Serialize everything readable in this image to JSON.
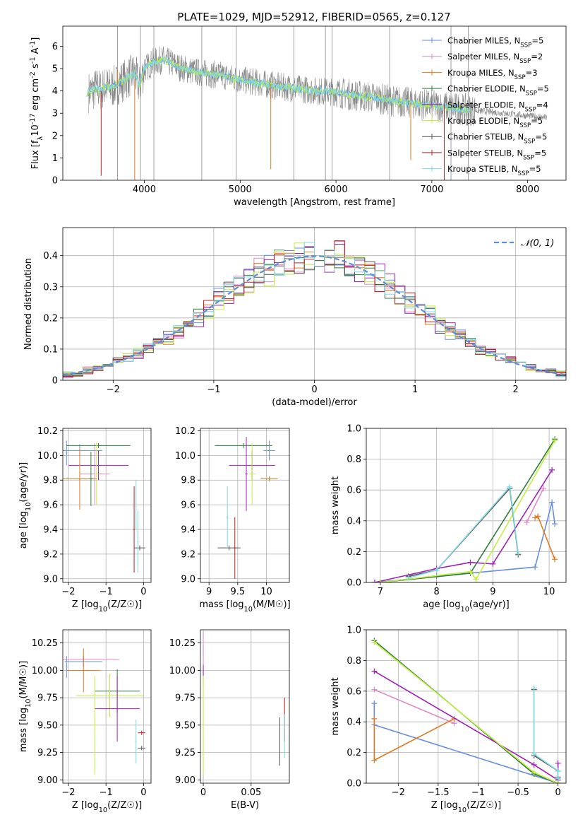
{
  "title": "PLATE=1029, MJD=52912, FIBERID=0565, z=0.127",
  "colors": {
    "chabrier_miles": "#6a8fdf",
    "salpeter_miles": "#e28cc6",
    "kroupa_miles": "#e5781f",
    "chabrier_elodie": "#2f7d3c",
    "salpeter_elodie": "#9f22b8",
    "kroupa_elodie": "#c2ef3f",
    "chabrier_stelib": "#555555",
    "salpeter_stelib": "#c11d1d",
    "kroupa_stelib": "#7ed8e2",
    "data_spectrum": "#888888",
    "gaussian": "#5e8dd8"
  },
  "chart_data": [
    {
      "id": "spectrum",
      "type": "line",
      "xlabel": "wavelength [Angstrom, rest frame]",
      "ylabel": "Flux [f_λ10^-17 erg cm^-2 s^-1 A^-1]",
      "xlim": [
        3150,
        8400
      ],
      "ylim": [
        0,
        6.9
      ],
      "xticks": [
        4000,
        5000,
        6000,
        7000,
        8000
      ],
      "yticks": [
        0,
        1,
        2,
        3,
        4,
        5,
        6
      ],
      "grid": false,
      "legend_position": "top-right",
      "legend": [
        {
          "label": "Chabrier MILES, N_SSP=5",
          "color_key": "chabrier_miles"
        },
        {
          "label": "Salpeter MILES, N_SSP=2",
          "color_key": "salpeter_miles"
        },
        {
          "label": "Kroupa MILES, N_SSP=3",
          "color_key": "kroupa_miles"
        },
        {
          "label": "Chabrier ELODIE, N_SSP=5",
          "color_key": "chabrier_elodie"
        },
        {
          "label": "Salpeter ELODIE, N_SSP=4",
          "color_key": "salpeter_elodie"
        },
        {
          "label": "Kroupa ELODIE, N_SSP=5",
          "color_key": "kroupa_elodie"
        },
        {
          "label": "Chabrier STELIB, N_SSP=5",
          "color_key": "chabrier_stelib"
        },
        {
          "label": "Salpeter STELIB, N_SSP=5",
          "color_key": "salpeter_stelib"
        },
        {
          "label": "Kroupa STELIB, N_SSP=5",
          "color_key": "kroupa_stelib"
        }
      ],
      "model_continuum": {
        "x": [
          3400,
          3450,
          3500,
          3550,
          3600,
          3650,
          3700,
          3800,
          3900,
          3950,
          4000,
          4100,
          4200,
          4300,
          4400,
          4500,
          4600,
          4800,
          5000,
          5200,
          5400,
          5600,
          5800,
          6000,
          6200,
          6400,
          6600,
          6800,
          7000,
          7200,
          7400
        ],
        "y": [
          3.9,
          4.0,
          4.1,
          4.05,
          4.2,
          4.1,
          4.25,
          4.5,
          4.8,
          4.2,
          5.0,
          5.3,
          5.4,
          5.2,
          5.0,
          4.9,
          4.8,
          4.7,
          4.5,
          4.35,
          4.2,
          4.1,
          4.0,
          3.95,
          3.8,
          3.7,
          3.55,
          3.45,
          3.35,
          3.25,
          3.15
        ]
      },
      "model_lines": [
        {
          "x": 3720,
          "y": 4.25,
          "dy": 0.7,
          "color_key": "kroupa_miles"
        },
        {
          "x": 3550,
          "y": 4.0,
          "dy": -3.8,
          "color_key": "salpeter_stelib"
        },
        {
          "x": 3900,
          "y": 4.5,
          "dy": -4.5,
          "color_key": "kroupa_miles"
        },
        {
          "x": 5320,
          "y": 4.3,
          "dy": -3.8,
          "color_key": "kroupa_miles"
        },
        {
          "x": 6780,
          "y": 3.5,
          "dy": -2.6,
          "color_key": "kroupa_miles"
        },
        {
          "x": 7130,
          "y": 3.4,
          "dy": -3.4,
          "color_key": "salpeter_stelib"
        }
      ],
      "data_noise_regions": [
        {
          "x_start": 3450,
          "x_end": 7450,
          "amplitude": 1.6
        },
        {
          "x_start": 7450,
          "x_end": 8200,
          "amplitude": 0.35
        }
      ],
      "data_spikes": [
        3720,
        3960,
        4100,
        4600,
        4960,
        5560,
        5890,
        5960,
        6560,
        7200,
        7380
      ]
    },
    {
      "id": "residuals",
      "type": "histogram",
      "xlabel": "(data-model)/error",
      "ylabel": "Normed distribution",
      "xlim": [
        -2.5,
        2.5
      ],
      "ylim": [
        0,
        0.49
      ],
      "xticks": [
        -2,
        -1,
        0,
        1,
        2
      ],
      "yticks": [
        0,
        0.1,
        0.2,
        0.3,
        0.4
      ],
      "grid": true,
      "legend_position": "top-right",
      "legend": [
        {
          "label": "𝒩(0, 1)",
          "color_key": "gaussian"
        }
      ],
      "bin_width": 0.1
    },
    {
      "id": "age_vs_Z",
      "type": "scatter",
      "xlabel": "Z [log10(Z/Z☉)]",
      "ylabel": "age  [log10(age/yr)]",
      "xlim": [
        -2.15,
        0.2
      ],
      "ylim": [
        8.97,
        10.22
      ],
      "xticks": [
        -2,
        -1,
        0
      ],
      "yticks": [
        9.0,
        9.2,
        9.4,
        9.6,
        9.8,
        10.0,
        10.2
      ],
      "grid": true,
      "points": [
        {
          "x": -1.7,
          "y": 10.04,
          "xerr": 0.6,
          "yerr": 0.05,
          "color_key": "chabrier_miles"
        },
        {
          "x": -2.05,
          "y": 10.02,
          "xerr": 0.02,
          "yerr": 0.1,
          "color_key": "chabrier_miles"
        },
        {
          "x": -1.3,
          "y": 9.85,
          "xerr": 0.4,
          "yerr": 0.25,
          "color_key": "salpeter_miles"
        },
        {
          "x": -1.2,
          "y": 9.92,
          "xerr": 0.8,
          "yerr": 0.12,
          "color_key": "salpeter_elodie"
        },
        {
          "x": -1.2,
          "y": 10.08,
          "xerr": 0.85,
          "yerr": 0.02,
          "color_key": "chabrier_elodie"
        },
        {
          "x": -1.25,
          "y": 9.85,
          "xerr": 0.05,
          "yerr": 0.25,
          "color_key": "kroupa_elodie"
        },
        {
          "x": -1.7,
          "y": 9.81,
          "xerr": 0.45,
          "yerr": 0.25,
          "color_key": "kroupa_miles"
        },
        {
          "x": -1.4,
          "y": 9.81,
          "xerr": 0.05,
          "yerr": 0.22,
          "color_key": "chabrier_elodie"
        },
        {
          "x": -0.1,
          "y": 9.25,
          "xerr": 0.15,
          "yerr": 0.02,
          "color_key": "chabrier_stelib"
        },
        {
          "x": -0.25,
          "y": 9.4,
          "xerr": 0.02,
          "yerr": 0.35,
          "color_key": "salpeter_stelib"
        },
        {
          "x": -0.2,
          "y": 9.6,
          "xerr": 0.02,
          "yerr": 0.2,
          "color_key": "kroupa_stelib"
        },
        {
          "x": -0.15,
          "y": 9.3,
          "xerr": 0.02,
          "yerr": 0.25,
          "color_key": "kroupa_stelib"
        }
      ]
    },
    {
      "id": "age_vs_mass",
      "type": "scatter",
      "xlabel": "mass [log10(M/M☉)]",
      "ylabel": "",
      "xlim": [
        8.85,
        10.4
      ],
      "ylim": [
        8.97,
        10.22
      ],
      "xticks": [
        9.0,
        9.5,
        10.0
      ],
      "yticks": [
        9.0,
        9.2,
        9.4,
        9.6,
        9.8,
        10.0,
        10.2
      ],
      "grid": true,
      "points": [
        {
          "x": 9.6,
          "y": 10.08,
          "xerr": 0.5,
          "yerr": 0.02,
          "color_key": "chabrier_elodie"
        },
        {
          "x": 9.75,
          "y": 9.92,
          "xerr": 0.4,
          "yerr": 0.12,
          "color_key": "salpeter_elodie"
        },
        {
          "x": 10.05,
          "y": 10.04,
          "xerr": 0.1,
          "yerr": 0.08,
          "color_key": "chabrier_miles"
        },
        {
          "x": 10.05,
          "y": 9.81,
          "xerr": 0.15,
          "yerr": 0.02,
          "color_key": "kroupa_miles"
        },
        {
          "x": 9.75,
          "y": 9.85,
          "xerr": 0.05,
          "yerr": 0.25,
          "color_key": "kroupa_elodie"
        },
        {
          "x": 9.65,
          "y": 9.85,
          "xerr": 0.02,
          "yerr": 0.3,
          "color_key": "salpeter_elodie"
        },
        {
          "x": 9.35,
          "y": 9.25,
          "xerr": 0.2,
          "yerr": 0.02,
          "color_key": "chabrier_stelib"
        },
        {
          "x": 9.45,
          "y": 9.25,
          "xerr": 0.02,
          "yerr": 0.25,
          "color_key": "salpeter_stelib"
        },
        {
          "x": 9.32,
          "y": 9.5,
          "xerr": 0.02,
          "yerr": 0.25,
          "color_key": "kroupa_stelib"
        }
      ]
    },
    {
      "id": "weight_vs_age",
      "type": "line",
      "xlabel": "age  [log10(age/yr)]",
      "ylabel": "mass weight",
      "xlim": [
        6.75,
        10.3
      ],
      "ylim": [
        0,
        1.0
      ],
      "xticks": [
        7,
        8,
        9,
        10
      ],
      "yticks": [
        0.0,
        0.2,
        0.4,
        0.6,
        0.8,
        1.0
      ],
      "grid": true,
      "series": [
        {
          "color_key": "chabrier_miles",
          "x": [
            6.9,
            8.0,
            9.75,
            10.05,
            10.1
          ],
          "y": [
            0.0,
            0.04,
            0.1,
            0.52,
            0.38
          ]
        },
        {
          "color_key": "salpeter_miles",
          "x": [
            9.6,
            9.9
          ],
          "y": [
            0.39,
            0.61
          ]
        },
        {
          "color_key": "kroupa_miles",
          "x": [
            9.75,
            9.8,
            10.1
          ],
          "y": [
            0.42,
            0.43,
            0.15
          ]
        },
        {
          "color_key": "chabrier_elodie",
          "x": [
            7.0,
            8.6,
            10.1
          ],
          "y": [
            0.0,
            0.06,
            0.93
          ]
        },
        {
          "color_key": "salpeter_elodie",
          "x": [
            6.9,
            8.0,
            8.6,
            9.0,
            10.05
          ],
          "y": [
            0.0,
            0.09,
            0.13,
            0.12,
            0.73
          ]
        },
        {
          "color_key": "kroupa_elodie",
          "x": [
            7.0,
            8.6,
            8.7,
            10.1
          ],
          "y": [
            0.0,
            0.07,
            0.02,
            0.92
          ]
        },
        {
          "color_key": "chabrier_stelib",
          "x": [
            7.5,
            8.0,
            9.3,
            9.45
          ],
          "y": [
            0.04,
            0.08,
            0.61,
            0.18
          ]
        },
        {
          "color_key": "kroupa_stelib",
          "x": [
            7.5,
            8.0,
            9.3,
            9.45
          ],
          "y": [
            0.03,
            0.08,
            0.62,
            0.19
          ]
        }
      ]
    },
    {
      "id": "mass_vs_Z",
      "type": "scatter",
      "xlabel": "Z [log10(Z/Z☉)]",
      "ylabel": "mass [log10(M/M☉)]",
      "xlim": [
        -2.15,
        0.2
      ],
      "ylim": [
        8.97,
        10.37
      ],
      "xticks": [
        -2,
        -1,
        0
      ],
      "yticks": [
        9.0,
        9.25,
        9.5,
        9.75,
        10.0,
        10.25
      ],
      "grid": true,
      "points": [
        {
          "x": -1.6,
          "y": 10.1,
          "xerr": 0.95,
          "yerr": 0.03,
          "color_key": "salpeter_miles"
        },
        {
          "x": -1.6,
          "y": 10.08,
          "xerr": 0.5,
          "yerr": 0.05,
          "color_key": "chabrier_miles"
        },
        {
          "x": -2.05,
          "y": 10.03,
          "xerr": 0.02,
          "yerr": 0.1,
          "color_key": "chabrier_miles"
        },
        {
          "x": -1.6,
          "y": 10.0,
          "xerr": 0.45,
          "yerr": 0.2,
          "color_key": "kroupa_miles"
        },
        {
          "x": -0.7,
          "y": 9.81,
          "xerr": 0.6,
          "yerr": 0.2,
          "color_key": "chabrier_elodie"
        },
        {
          "x": -0.9,
          "y": 9.77,
          "xerr": 0.9,
          "yerr": 0.2,
          "color_key": "kroupa_elodie"
        },
        {
          "x": -0.7,
          "y": 9.65,
          "xerr": 0.6,
          "yerr": 0.3,
          "color_key": "salpeter_elodie"
        },
        {
          "x": -1.3,
          "y": 9.5,
          "xerr": 0.05,
          "yerr": 0.45,
          "color_key": "kroupa_elodie"
        },
        {
          "x": -0.05,
          "y": 9.29,
          "xerr": 0.1,
          "yerr": 0.02,
          "color_key": "chabrier_stelib"
        },
        {
          "x": -0.05,
          "y": 9.43,
          "xerr": 0.1,
          "yerr": 0.02,
          "color_key": "salpeter_stelib"
        },
        {
          "x": -0.2,
          "y": 9.35,
          "xerr": 0.02,
          "yerr": 0.2,
          "color_key": "kroupa_stelib"
        }
      ]
    },
    {
      "id": "mass_vs_ebv",
      "type": "scatter",
      "xlabel": "E(B-V)",
      "ylabel": "",
      "xlim": [
        -0.003,
        0.09
      ],
      "ylim": [
        8.97,
        10.37
      ],
      "xticks": [
        0.0,
        0.05
      ],
      "yticks": [
        9.0,
        9.25,
        9.5,
        9.75,
        10.0,
        10.25
      ],
      "grid": true,
      "points": [
        {
          "x": 0.0,
          "y": 10.15,
          "xerr": 0.0,
          "yerr": 0.2,
          "color_key": "salpeter_miles"
        },
        {
          "x": 0.0,
          "y": 9.95,
          "xerr": 0.0,
          "yerr": 0.1,
          "color_key": "salpeter_elodie"
        },
        {
          "x": 0.0,
          "y": 9.5,
          "xerr": 0.0,
          "yerr": 0.45,
          "color_key": "kroupa_elodie"
        },
        {
          "x": 0.08,
          "y": 9.35,
          "xerr": 0.0,
          "yerr": 0.22,
          "color_key": "chabrier_stelib"
        },
        {
          "x": 0.085,
          "y": 9.55,
          "xerr": 0.0,
          "yerr": 0.2,
          "color_key": "salpeter_stelib"
        },
        {
          "x": 0.085,
          "y": 9.4,
          "xerr": 0.0,
          "yerr": 0.2,
          "color_key": "kroupa_stelib"
        }
      ]
    },
    {
      "id": "weight_vs_Z",
      "type": "line",
      "xlabel": "Z [log10(Z/Z☉)]",
      "ylabel": "mass weight",
      "xlim": [
        -2.4,
        0.1
      ],
      "ylim": [
        0,
        1.0
      ],
      "xticks": [
        -2.0,
        -1.5,
        -1.0,
        -0.5,
        0.0
      ],
      "yticks": [
        0.0,
        0.2,
        0.4,
        0.6,
        0.8,
        1.0
      ],
      "grid": true,
      "series": [
        {
          "color_key": "chabrier_miles",
          "x": [
            -2.3,
            -2.3,
            0.0
          ],
          "y": [
            0.52,
            0.38,
            0.0
          ]
        },
        {
          "color_key": "salpeter_miles",
          "x": [
            -2.3,
            -1.3
          ],
          "y": [
            0.61,
            0.39
          ]
        },
        {
          "color_key": "kroupa_miles",
          "x": [
            -2.3,
            -2.3,
            -1.3
          ],
          "y": [
            0.42,
            0.15,
            0.42
          ]
        },
        {
          "color_key": "chabrier_elodie",
          "x": [
            -2.3,
            -0.3,
            0.0
          ],
          "y": [
            0.93,
            0.06,
            0.0
          ]
        },
        {
          "color_key": "salpeter_elodie",
          "x": [
            -2.3,
            -0.3,
            0.0,
            0.0
          ],
          "y": [
            0.73,
            0.12,
            0.02,
            0.13
          ]
        },
        {
          "color_key": "kroupa_elodie",
          "x": [
            -2.3,
            -0.3,
            0.0
          ],
          "y": [
            0.92,
            0.07,
            0.0
          ]
        },
        {
          "color_key": "chabrier_stelib",
          "x": [
            -0.3,
            -0.3,
            0.0,
            0.0
          ],
          "y": [
            0.61,
            0.18,
            0.08,
            0.04
          ]
        },
        {
          "color_key": "kroupa_stelib",
          "x": [
            -0.3,
            -0.3,
            0.0,
            0.0
          ],
          "y": [
            0.62,
            0.19,
            0.08,
            0.03
          ]
        }
      ]
    }
  ]
}
